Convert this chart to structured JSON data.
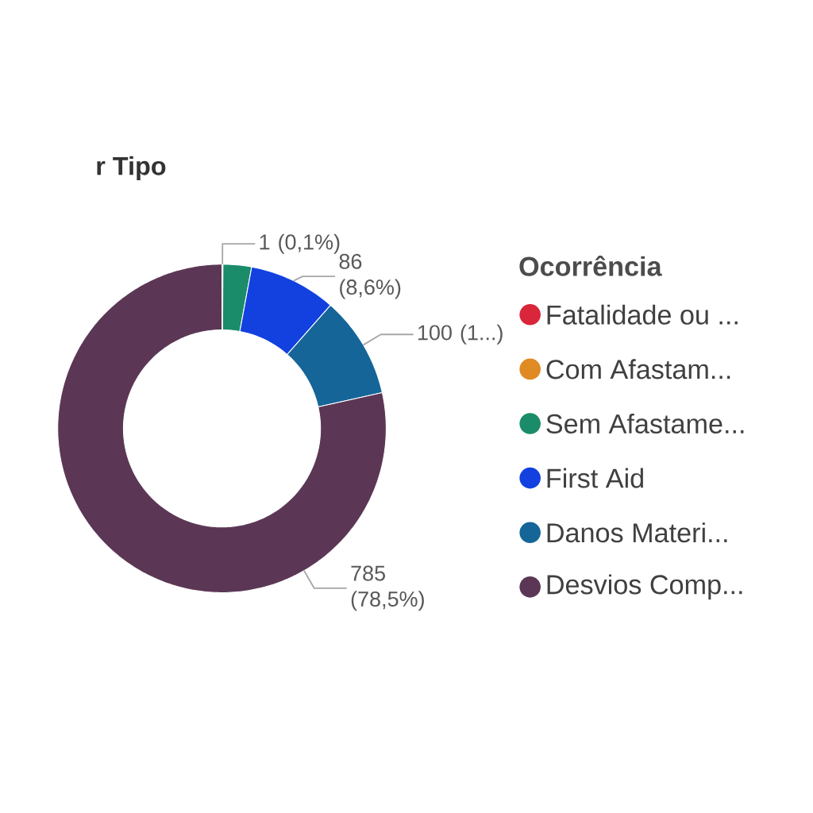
{
  "chart_data": {
    "type": "donut",
    "title": "r Tipo",
    "legend_title": "Ocorrência",
    "legend": "right",
    "categories": [
      "Fatalidade ou ...",
      "Com Afastam...",
      "Sem Afastame...",
      "First Aid",
      "Danos Materi...",
      "Desvios Comp..."
    ],
    "values": [
      0,
      1,
      28,
      86,
      100,
      785
    ],
    "colors": [
      "#d9263a",
      "#e08a24",
      "#1a8c6a",
      "#1241e0",
      "#156598",
      "#5b3755"
    ],
    "value_labels": [
      null,
      "1 (0,1%)",
      null,
      "86 (8,6%)",
      "100 (1...)",
      "785 (78,5%)"
    ]
  }
}
